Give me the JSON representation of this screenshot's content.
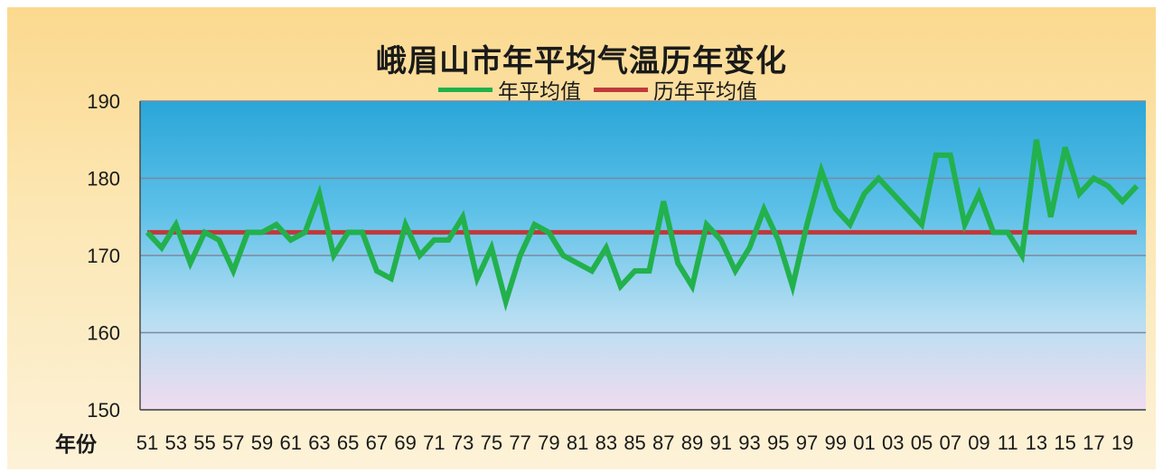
{
  "chart_data": {
    "type": "line",
    "title": "峨眉山市年平均气温历年变化",
    "xlabel": "年份",
    "ylabel": "",
    "ylim": [
      150,
      190
    ],
    "y_ticks": [
      "150",
      "160",
      "170",
      "180",
      "190"
    ],
    "x_tick_labels": [
      "51",
      "53",
      "55",
      "57",
      "59",
      "61",
      "63",
      "65",
      "67",
      "69",
      "71",
      "73",
      "75",
      "77",
      "79",
      "81",
      "83",
      "85",
      "87",
      "89",
      "91",
      "93",
      "95",
      "97",
      "99",
      "01",
      "03",
      "05",
      "07",
      "09",
      "11",
      "13",
      "15",
      "17",
      "19"
    ],
    "x": [
      "1951",
      "1952",
      "1953",
      "1954",
      "1955",
      "1956",
      "1957",
      "1958",
      "1959",
      "1960",
      "1961",
      "1962",
      "1963",
      "1964",
      "1965",
      "1966",
      "1967",
      "1968",
      "1969",
      "1970",
      "1971",
      "1972",
      "1973",
      "1974",
      "1975",
      "1976",
      "1977",
      "1978",
      "1979",
      "1980",
      "1981",
      "1982",
      "1983",
      "1984",
      "1985",
      "1986",
      "1987",
      "1988",
      "1989",
      "1990",
      "1991",
      "1992",
      "1993",
      "1994",
      "1995",
      "1996",
      "1997",
      "1998",
      "1999",
      "2000",
      "2001",
      "2002",
      "2003",
      "2004",
      "2005",
      "2006",
      "2007",
      "2008",
      "2009",
      "2010",
      "2011",
      "2012",
      "2013",
      "2014",
      "2015",
      "2016",
      "2017",
      "2018",
      "2019",
      "2020"
    ],
    "series": [
      {
        "name": "年平均值",
        "color": "#22b14c",
        "values": [
          173,
          171,
          174,
          169,
          173,
          172,
          168,
          173,
          173,
          174,
          172,
          173,
          178,
          170,
          173,
          173,
          168,
          167,
          174,
          170,
          172,
          172,
          175,
          167,
          171,
          164,
          170,
          174,
          173,
          170,
          169,
          168,
          171,
          166,
          168,
          168,
          177,
          169,
          166,
          174,
          172,
          168,
          171,
          176,
          172,
          166,
          174,
          181,
          176,
          174,
          178,
          180,
          178,
          176,
          174,
          183,
          183,
          174,
          178,
          173,
          173,
          170,
          185,
          175,
          184,
          178,
          180,
          179,
          177,
          179
        ]
      },
      {
        "name": "历年平均值",
        "color": "#c0393b",
        "values": [
          173,
          173,
          173,
          173,
          173,
          173,
          173,
          173,
          173,
          173,
          173,
          173,
          173,
          173,
          173,
          173,
          173,
          173,
          173,
          173,
          173,
          173,
          173,
          173,
          173,
          173,
          173,
          173,
          173,
          173,
          173,
          173,
          173,
          173,
          173,
          173,
          173,
          173,
          173,
          173,
          173,
          173,
          173,
          173,
          173,
          173,
          173,
          173,
          173,
          173,
          173,
          173,
          173,
          173,
          173,
          173,
          173,
          173,
          173,
          173,
          173,
          173,
          173,
          173,
          173,
          173,
          173,
          173,
          173,
          173
        ]
      }
    ],
    "grid": true,
    "legend_position": "top-center"
  }
}
